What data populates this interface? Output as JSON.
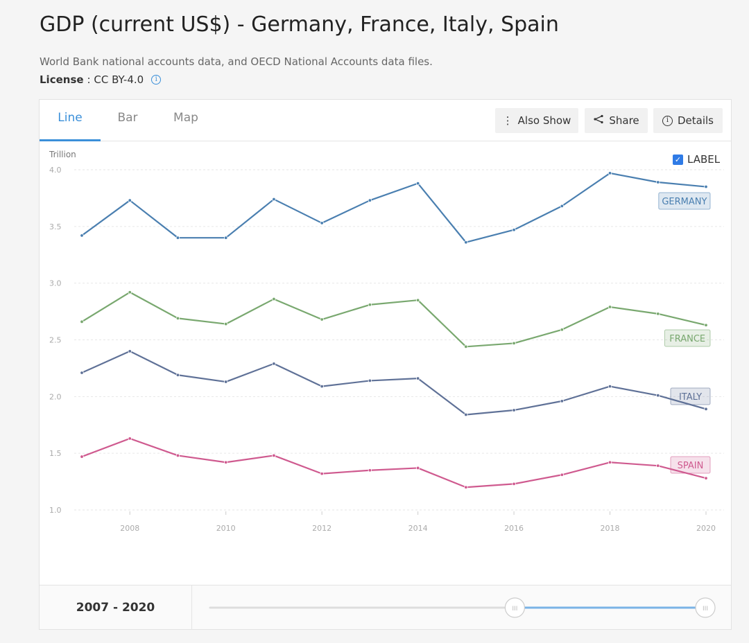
{
  "page": {
    "title": "GDP (current US$) - Germany, France, Italy, Spain",
    "source": "World Bank national accounts data, and OECD National Accounts data files.",
    "license_label": "License",
    "license_value": ": CC BY-4.0"
  },
  "tabs": [
    "Line",
    "Bar",
    "Map"
  ],
  "active_tab": "Line",
  "toolbar": {
    "also_show": "Also Show",
    "share": "Share",
    "details": "Details"
  },
  "label_toggle": {
    "text": "LABEL",
    "checked": true
  },
  "range": {
    "text": "2007 - 2020",
    "start": 2007,
    "end": 2020,
    "selected_start": 2015,
    "selected_end": 2020
  },
  "colors": {
    "accent": "#3a8fd9",
    "germany": "#4a7fb0",
    "france": "#79a86f",
    "italy": "#5f7197",
    "spain": "#cf5a8f"
  },
  "chart_data": {
    "type": "line",
    "unit_label": "Trillion",
    "x": [
      2007,
      2008,
      2009,
      2010,
      2011,
      2012,
      2013,
      2014,
      2015,
      2016,
      2017,
      2018,
      2019,
      2020
    ],
    "x_ticks": [
      "2008",
      "2010",
      "2012",
      "2014",
      "2016",
      "2018",
      "2020"
    ],
    "y_ticks": [
      "1.0",
      "1.5",
      "2.0",
      "2.5",
      "3.0",
      "3.5",
      "4.0"
    ],
    "ylim": [
      1.0,
      4.0
    ],
    "grid": true,
    "series": [
      {
        "name": "GERMANY",
        "label": "GERMANY",
        "color": "#4a7fb0",
        "values": [
          3.42,
          3.73,
          3.4,
          3.4,
          3.74,
          3.53,
          3.73,
          3.88,
          3.36,
          3.47,
          3.68,
          3.97,
          3.89,
          3.85
        ]
      },
      {
        "name": "FRANCE",
        "label": "FRANCE",
        "color": "#79a86f",
        "values": [
          2.66,
          2.92,
          2.69,
          2.64,
          2.86,
          2.68,
          2.81,
          2.85,
          2.44,
          2.47,
          2.59,
          2.79,
          2.73,
          2.63
        ]
      },
      {
        "name": "ITALY",
        "label": "ITALY",
        "color": "#5f7197",
        "values": [
          2.21,
          2.4,
          2.19,
          2.13,
          2.29,
          2.09,
          2.14,
          2.16,
          1.84,
          1.88,
          1.96,
          2.09,
          2.01,
          1.89
        ]
      },
      {
        "name": "SPAIN",
        "label": "SPAIN",
        "color": "#cf5a8f",
        "values": [
          1.47,
          1.63,
          1.48,
          1.42,
          1.48,
          1.32,
          1.35,
          1.37,
          1.2,
          1.23,
          1.31,
          1.42,
          1.39,
          1.28
        ]
      }
    ]
  }
}
